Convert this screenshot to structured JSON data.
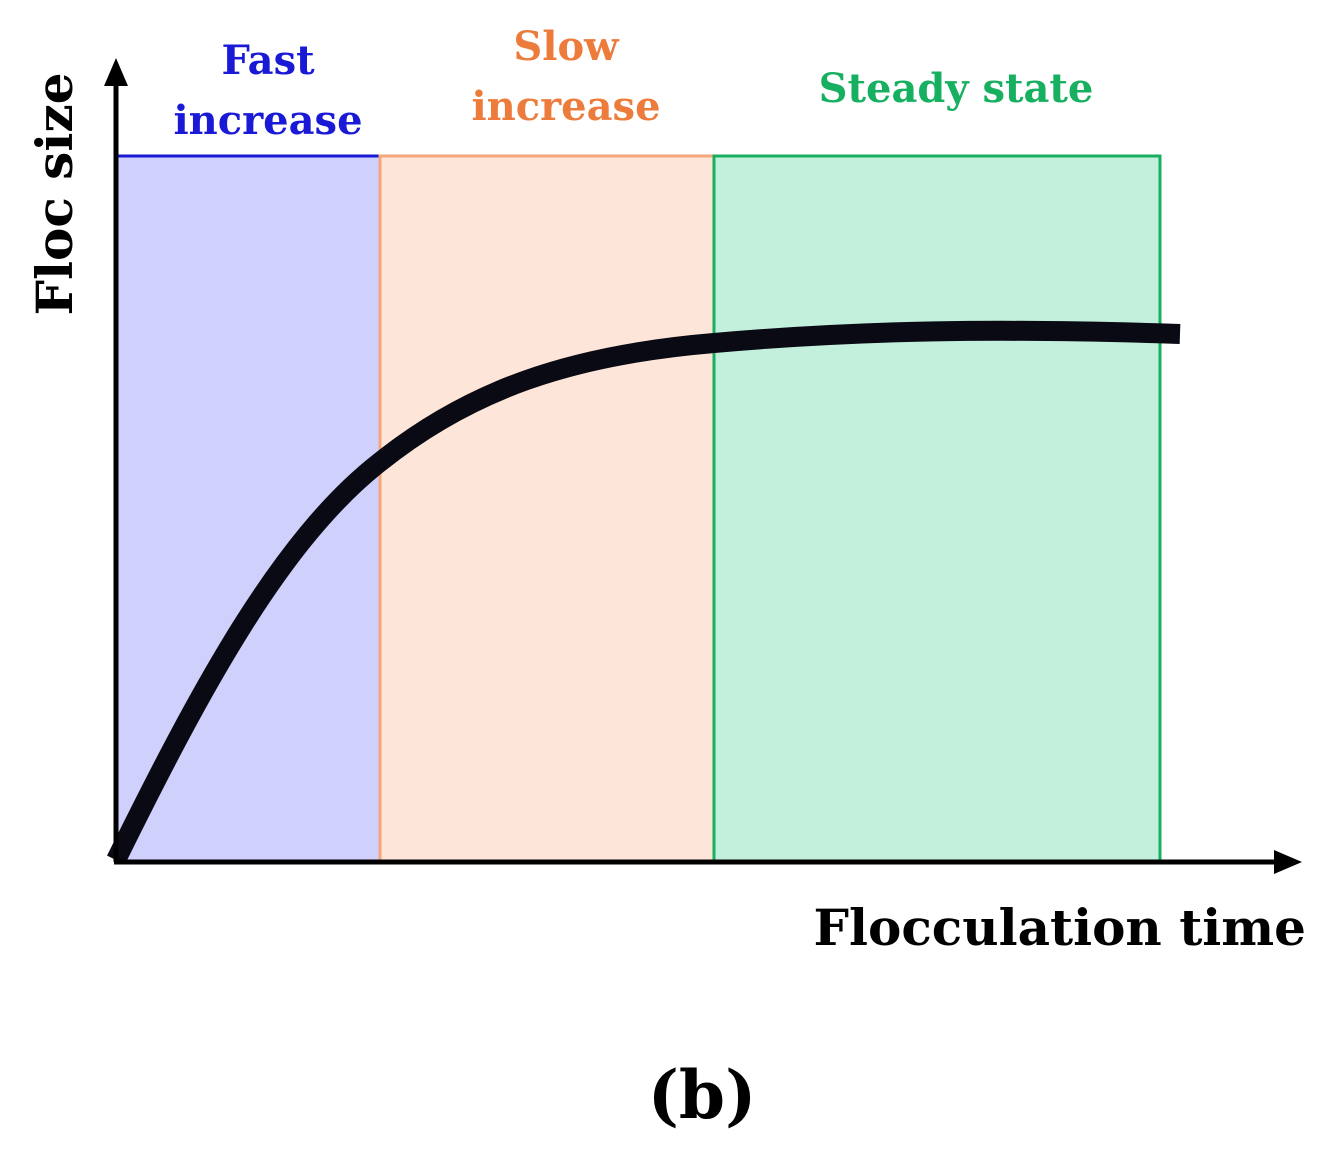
{
  "axes": {
    "y_title": "Floc size",
    "x_title": "Flocculation time"
  },
  "phases": [
    {
      "id": "fast",
      "label_lines": [
        "Fast",
        "increase"
      ],
      "stroke": "#1a1ad6",
      "fill": "#cfd0fb",
      "text_color": "#1a1ad6"
    },
    {
      "id": "slow",
      "label_lines": [
        "Slow",
        "increase"
      ],
      "stroke": "#f4a77a",
      "fill": "#fde6d9",
      "text_color": "#ec7b3c"
    },
    {
      "id": "steady",
      "label_lines": [
        "Steady state"
      ],
      "stroke": "#17b060",
      "fill": "#c3f0dc",
      "text_color": "#17b060"
    }
  ],
  "curve": {
    "color": "#0a0a14",
    "description_points": "rises steeply, then slowly, then plateaus"
  },
  "panel_label": "(b)"
}
